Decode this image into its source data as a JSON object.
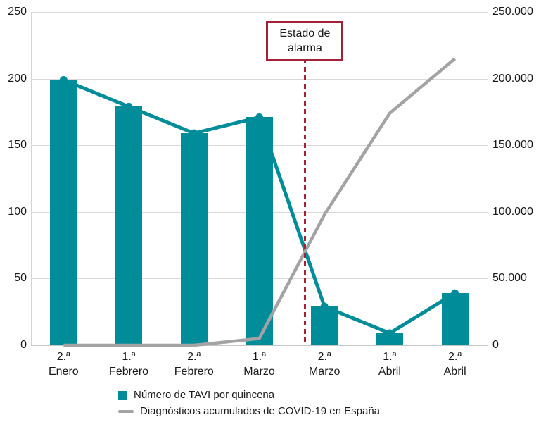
{
  "chart_data": {
    "type": "bar",
    "subtype": "combo-bar-and-line-dual-axis",
    "categories": [
      "2.ª Enero",
      "1.ª Febrero",
      "2.ª Febrero",
      "1.ª Marzo",
      "2.ª Marzo",
      "1.ª Abril",
      "2.ª Abril"
    ],
    "x_labels": [
      {
        "fortnight": "2.ª",
        "month": "Enero"
      },
      {
        "fortnight": "1.ª",
        "month": "Febrero"
      },
      {
        "fortnight": "2.ª",
        "month": "Febrero"
      },
      {
        "fortnight": "1.ª",
        "month": "Marzo"
      },
      {
        "fortnight": "2.ª",
        "month": "Marzo"
      },
      {
        "fortnight": "1.ª",
        "month": "Abril"
      },
      {
        "fortnight": "2.ª",
        "month": "Abril"
      }
    ],
    "series": [
      {
        "name": "Número de TAVI por quincena",
        "type": "bar-with-line-markers",
        "axis": "left",
        "color": "#008d99",
        "values": [
          199,
          179,
          159,
          171,
          29,
          9,
          39
        ]
      },
      {
        "name": "Diagnósticos acumulados de COVID-19 en España",
        "type": "line",
        "axis": "right",
        "color": "#a3a3a5",
        "values": [
          0,
          0,
          0,
          5000,
          98000,
          174000,
          215000
        ]
      }
    ],
    "left_axis": {
      "min": 0,
      "max": 250,
      "ticks": [
        "0",
        "50",
        "100",
        "150",
        "200",
        "250"
      ]
    },
    "right_axis": {
      "min": 0,
      "max": 250000,
      "ticks": [
        "0",
        "50.000",
        "100.000",
        "150.000",
        "200.000",
        "250.000"
      ]
    },
    "annotation": {
      "line1": "Estado de",
      "line2": "alarma",
      "between_categories": [
        "1.ª Marzo",
        "2.ª Marzo"
      ],
      "color": "#a52138"
    },
    "legend_position": "bottom",
    "grid": "horizontal",
    "colors": {
      "bar_teal": "#008d99",
      "line_gray": "#a3a3a5",
      "alarm_red": "#a52138",
      "gridline": "#d9d9d9",
      "text": "#1a1a1a"
    }
  }
}
